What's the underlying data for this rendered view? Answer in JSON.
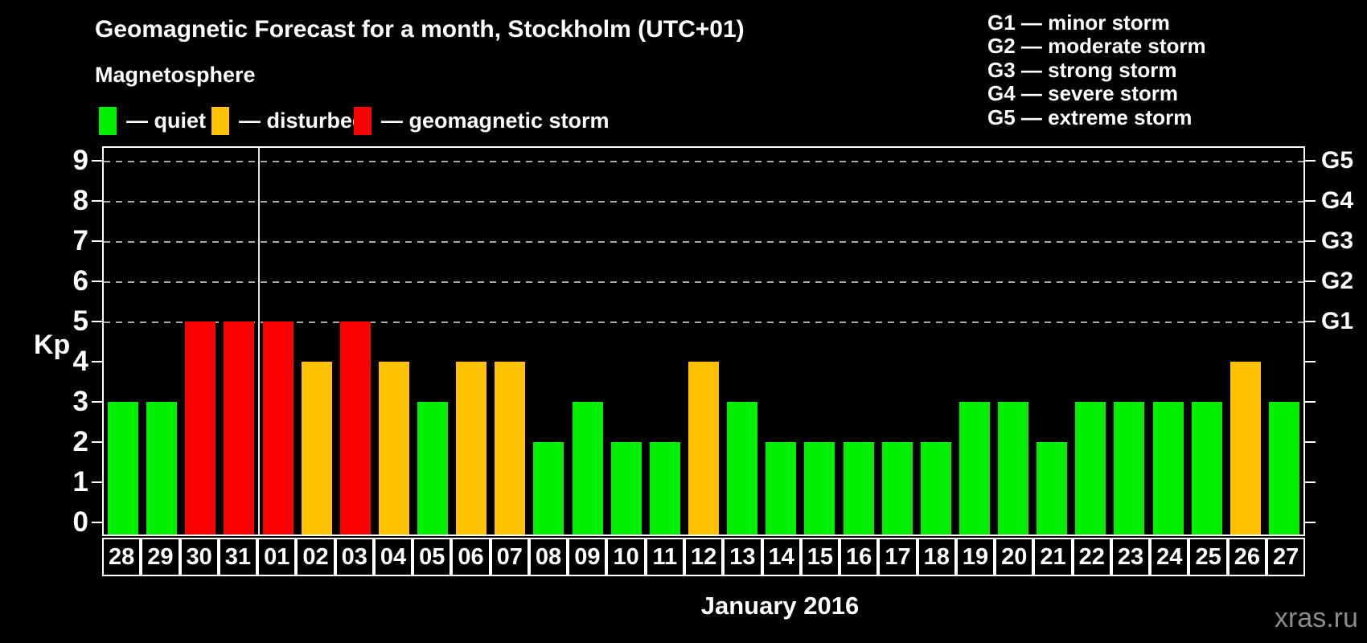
{
  "title": "Geomagnetic Forecast for a month, Stockholm (UTC+01)",
  "subtitle": "Magnetosphere",
  "legend": [
    {
      "key": "quiet",
      "label": "— quiet",
      "color": "#00f000"
    },
    {
      "key": "disturbed",
      "label": "— disturbed",
      "color": "#ffc100"
    },
    {
      "key": "storm",
      "label": "— geomagnetic storm",
      "color": "#fc0000"
    }
  ],
  "g_scale_legend": [
    "G1 — minor storm",
    "G2 — moderate storm",
    "G3 — strong storm",
    "G4 — severe storm",
    "G5 — extreme storm"
  ],
  "y_axis": {
    "label": "Kp",
    "ticks": [
      0,
      1,
      2,
      3,
      4,
      5,
      6,
      7,
      8,
      9
    ]
  },
  "right_axis": {
    "ticks": [
      0,
      1,
      2,
      3,
      4,
      5,
      6,
      7,
      8,
      9
    ],
    "labels": [
      {
        "kp": 5,
        "label": "G1"
      },
      {
        "kp": 6,
        "label": "G2"
      },
      {
        "kp": 7,
        "label": "G3"
      },
      {
        "kp": 8,
        "label": "G4"
      },
      {
        "kp": 9,
        "label": "G5"
      }
    ]
  },
  "x_axis_label": "January 2016",
  "watermark": "xras.ru",
  "chart_data": {
    "type": "bar",
    "title": "Geomagnetic Forecast for a month, Stockholm (UTC+01)",
    "ylabel": "Kp",
    "ylim": [
      0,
      9
    ],
    "grid": "dashed horizontal at Kp 5-9 only",
    "legend_position": "top-left (quiet/disturbed/storm), top-right (G1-G5 scale)",
    "gridlines_at": [
      5,
      6,
      7,
      8,
      9
    ],
    "month_boundary_after_index": 3,
    "categories": [
      "28",
      "29",
      "30",
      "31",
      "01",
      "02",
      "03",
      "04",
      "05",
      "06",
      "07",
      "08",
      "09",
      "10",
      "11",
      "12",
      "13",
      "14",
      "15",
      "16",
      "17",
      "18",
      "19",
      "20",
      "21",
      "22",
      "23",
      "24",
      "25",
      "26",
      "27"
    ],
    "values": [
      3,
      3,
      5,
      5,
      5,
      4,
      5,
      4,
      3,
      4,
      4,
      2,
      3,
      2,
      2,
      4,
      3,
      2,
      2,
      2,
      2,
      2,
      3,
      3,
      2,
      3,
      3,
      3,
      3,
      4,
      3
    ],
    "color_rule": {
      "quiet_max": 3,
      "disturbed": 4,
      "storm_min": 5
    },
    "colors": {
      "quiet": "#00f000",
      "disturbed": "#ffc100",
      "storm": "#fc0000"
    }
  }
}
